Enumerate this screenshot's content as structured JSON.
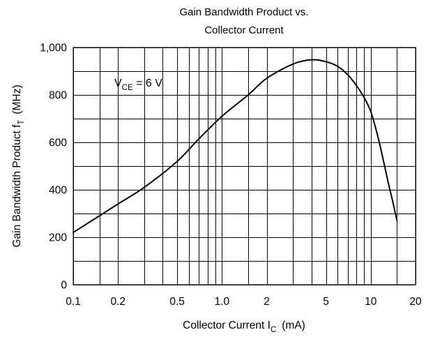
{
  "chart_data": {
    "type": "line",
    "title_line1": "Gain Bandwidth Product vs.",
    "title_line2": "Collector Current",
    "xlabel_main": "Collector Current  I",
    "xlabel_sub": "C",
    "xlabel_unit": "(mA)",
    "ylabel_main": "Gain Bandwidth Product  f",
    "ylabel_sub": "T",
    "ylabel_unit": "(MHz)",
    "annotation_main": "V",
    "annotation_sub": "CE",
    "annotation_rest": " = 6 V",
    "x_scale": "log",
    "xlim": [
      0.1,
      20
    ],
    "ylim": [
      0,
      1000
    ],
    "grid": true,
    "x_ticks": [
      0.1,
      0.2,
      0.5,
      1.0,
      2,
      5,
      10,
      20
    ],
    "x_tick_labels": [
      "0.1",
      "0.2",
      "0.5",
      "1.0",
      "2",
      "5",
      "10",
      "20"
    ],
    "x_minor_grid": [
      0.15,
      0.3,
      0.4,
      0.6,
      0.7,
      0.8,
      0.9,
      1.5,
      3,
      4,
      6,
      7,
      8,
      9,
      15
    ],
    "y_ticks": [
      0,
      200,
      400,
      600,
      800,
      1000
    ],
    "y_tick_labels": [
      "0",
      "200",
      "400",
      "600",
      "800",
      "1,000"
    ],
    "y_minor_grid": [
      100,
      300,
      500,
      700,
      900
    ],
    "series": [
      {
        "x": [
          0.1,
          0.2,
          0.3,
          0.5,
          0.7,
          1.0,
          1.5,
          2.0,
          3.0,
          4.0,
          5.0,
          6.0,
          7.0,
          8.0,
          9.0,
          10.0,
          11.0,
          12.0,
          13.0,
          14.0,
          15.0
        ],
        "y": [
          220,
          340,
          410,
          520,
          615,
          710,
          800,
          870,
          930,
          948,
          940,
          920,
          885,
          840,
          790,
          730,
          640,
          540,
          440,
          355,
          270
        ]
      }
    ]
  }
}
